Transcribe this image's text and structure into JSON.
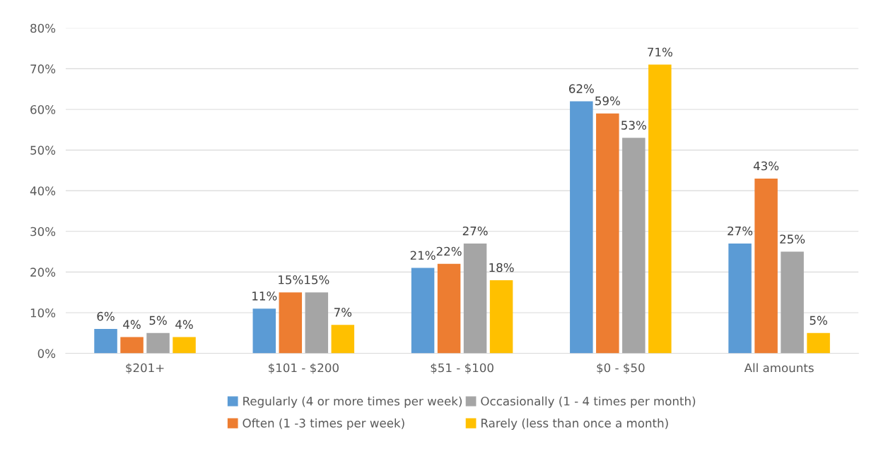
{
  "chart_data": {
    "type": "bar",
    "categories": [
      "$201+",
      "$101 - $200",
      "$51 - $100",
      "$0 - $50",
      "All amounts"
    ],
    "series": [
      {
        "name": "Regularly (4 or more times per week)",
        "color": "#5b9bd5",
        "values": [
          6,
          11,
          21,
          62,
          27
        ],
        "value_labels": [
          "6%",
          "11%",
          "21%",
          "62%",
          "27%"
        ]
      },
      {
        "name": "Often (1 -3 times per week)",
        "color": "#ed7d31",
        "values": [
          4,
          15,
          22,
          59,
          43
        ],
        "value_labels": [
          "4%",
          "15%",
          "22%",
          "59%",
          "43%"
        ]
      },
      {
        "name": "Occasionally (1 - 4 times per month)",
        "color": "#a5a5a5",
        "values": [
          5,
          15,
          27,
          53,
          25
        ],
        "value_labels": [
          "5%",
          "15%",
          "27%",
          "53%",
          "25%"
        ]
      },
      {
        "name": "Rarely (less than once a month)",
        "color": "#ffc000",
        "values": [
          4,
          7,
          18,
          71,
          5
        ],
        "value_labels": [
          "4%",
          "7%",
          "18%",
          "71%",
          "5%"
        ]
      }
    ],
    "ylim": [
      0,
      80
    ],
    "yticks": [
      {
        "value": 0,
        "label": "0%"
      },
      {
        "value": 10,
        "label": "10%"
      },
      {
        "value": 20,
        "label": "20%"
      },
      {
        "value": 30,
        "label": "30%"
      },
      {
        "value": 40,
        "label": "40%"
      },
      {
        "value": 50,
        "label": "50%"
      },
      {
        "value": 60,
        "label": "60%"
      },
      {
        "value": 70,
        "label": "70%"
      },
      {
        "value": 80,
        "label": "80%"
      }
    ],
    "grid": "y",
    "legend": "bottom"
  }
}
